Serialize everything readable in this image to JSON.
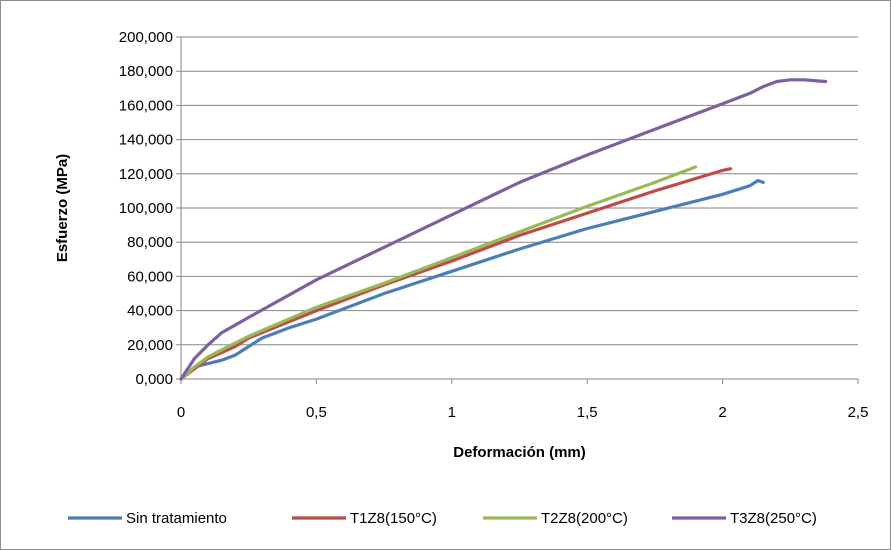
{
  "chart_data": {
    "type": "line",
    "title": "",
    "xlabel": "Deformación (mm)",
    "ylabel": "Esfuerzo (MPa)",
    "xlim": [
      0,
      2.5
    ],
    "ylim": [
      0,
      200
    ],
    "x_ticks": [
      "0",
      "0,5",
      "1",
      "1,5",
      "2",
      "2,5"
    ],
    "y_ticks": [
      "0,000",
      "20,000",
      "40,000",
      "60,000",
      "80,000",
      "100,000",
      "120,000",
      "140,000",
      "160,000",
      "180,000",
      "200,000"
    ],
    "grid": "horizontal",
    "legend_position": "bottom",
    "series": [
      {
        "name": "Sin tratamiento",
        "color": "#4a7ebb",
        "x": [
          0,
          0.05,
          0.1,
          0.15,
          0.2,
          0.25,
          0.3,
          0.4,
          0.5,
          0.75,
          1.0,
          1.25,
          1.5,
          1.75,
          2.0,
          2.1,
          2.13,
          2.15
        ],
        "y": [
          0,
          7,
          9,
          11,
          14,
          19,
          24,
          30,
          35,
          50,
          63,
          76,
          88,
          98,
          108,
          113,
          116,
          115
        ]
      },
      {
        "name": "T1Z8(150°C)",
        "color": "#be4b48",
        "x": [
          0,
          0.05,
          0.1,
          0.2,
          0.25,
          0.5,
          0.75,
          1.0,
          1.25,
          1.5,
          1.75,
          2.0,
          2.03
        ],
        "y": [
          0,
          6,
          12,
          19,
          24,
          40,
          55,
          69,
          84,
          97,
          110,
          122,
          123
        ]
      },
      {
        "name": "T2Z8(200°C)",
        "color": "#98b954",
        "x": [
          0,
          0.05,
          0.1,
          0.2,
          0.25,
          0.5,
          0.75,
          1.0,
          1.25,
          1.5,
          1.75,
          1.9
        ],
        "y": [
          0,
          7,
          13,
          21,
          25,
          42,
          56,
          71,
          86,
          101,
          115,
          124
        ]
      },
      {
        "name": "T3Z8(250°C)",
        "color": "#7d60a0",
        "x": [
          0,
          0.05,
          0.1,
          0.15,
          0.25,
          0.5,
          0.75,
          1.0,
          1.25,
          1.5,
          1.75,
          2.0,
          2.1,
          2.15,
          2.2,
          2.25,
          2.3,
          2.38
        ],
        "y": [
          0,
          12,
          20,
          27,
          36,
          58,
          77,
          96,
          115,
          131,
          146,
          161,
          167,
          171,
          174,
          175,
          175,
          174
        ]
      }
    ]
  }
}
